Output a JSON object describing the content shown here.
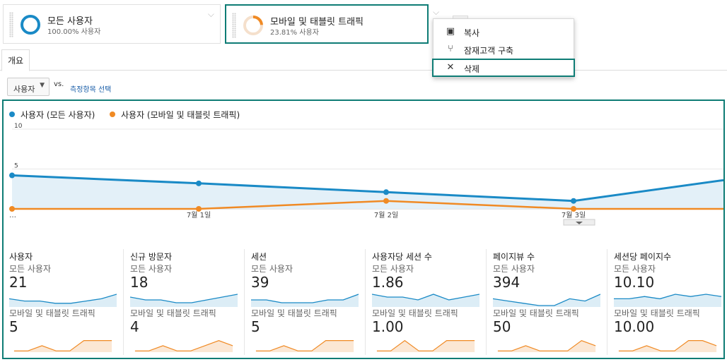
{
  "segments": [
    {
      "title": "모든 사용자",
      "subtitle": "100.00% 사용자",
      "percent": 100.0,
      "color": "#1a8ac6"
    },
    {
      "title": "모바일 및 태블릿 트래픽",
      "subtitle": "23.81% 사용자",
      "percent": 23.81,
      "color": "#f08a24"
    }
  ],
  "menu": {
    "items": [
      {
        "label": "복사",
        "icon": "copy-icon"
      },
      {
        "label": "잠재고객 구축",
        "icon": "fork-icon"
      },
      {
        "label": "삭제",
        "icon": "close-icon"
      }
    ]
  },
  "tabs": [
    {
      "label": "개요"
    }
  ],
  "metric_selector": {
    "value": "사용자",
    "vs": "vs.",
    "pick": "측정항목 선택"
  },
  "legend": {
    "series1": "사용자 (모든 사용자)",
    "series2": "사용자 (모바일 및 태블릿 트래픽)"
  },
  "chart_data": {
    "type": "line",
    "x": [
      "…",
      "7월 1일",
      "7월 2일",
      "7월 3일",
      ""
    ],
    "series": [
      {
        "name": "사용자 (모든 사용자)",
        "values": [
          4.2,
          3.2,
          2.1,
          1.0,
          3.6
        ],
        "color": "#1a8ac6"
      },
      {
        "name": "사용자 (모바일 및 태블릿 트래픽)",
        "values": [
          0,
          0,
          1,
          0,
          0
        ],
        "color": "#f08a24"
      }
    ],
    "yticks": [
      "10",
      "5"
    ],
    "ylim": [
      0,
      10
    ],
    "grid": true
  },
  "metrics": [
    {
      "name": "사용자",
      "seg1": "모든 사용자",
      "v1": "21",
      "seg2": "모바일 및 태블릿 트래픽",
      "v2": "5",
      "spark1": [
        3,
        2,
        2,
        1,
        1,
        2,
        3,
        5
      ],
      "spark2": [
        0,
        0,
        1,
        0,
        0,
        2,
        2,
        2
      ]
    },
    {
      "name": "신규 방문자",
      "seg1": "모든 사용자",
      "v1": "18",
      "seg2": "모바일 및 태블릿 트래픽",
      "v2": "4",
      "spark1": [
        3,
        2,
        2,
        1,
        1,
        2,
        3,
        4
      ],
      "spark2": [
        0,
        0,
        1,
        0,
        0,
        1,
        2,
        1
      ]
    },
    {
      "name": "세션",
      "seg1": "모든 사용자",
      "v1": "39",
      "seg2": "모바일 및 태블릿 트래픽",
      "v2": "5",
      "spark1": [
        2,
        2,
        1,
        1,
        1,
        2,
        2,
        4
      ],
      "spark2": [
        0,
        0,
        1,
        0,
        0,
        2,
        2,
        2
      ]
    },
    {
      "name": "사용자당 세션 수",
      "seg1": "모든 사용자",
      "v1": "1.86",
      "seg2": "모바일 및 태블릿 트래픽",
      "v2": "1.00",
      "spark1": [
        4,
        3,
        3,
        2,
        4,
        2,
        3,
        4
      ],
      "spark2": [
        0,
        0,
        2,
        0,
        0,
        2,
        2,
        2
      ]
    },
    {
      "name": "페이지뷰 수",
      "seg1": "모든 사용자",
      "v1": "394",
      "seg2": "모바일 및 태블릿 트래픽",
      "v2": "50",
      "spark1": [
        3,
        2,
        1,
        0,
        0,
        3,
        2,
        5
      ],
      "spark2": [
        0,
        0,
        1,
        0,
        0,
        0,
        2,
        1
      ]
    },
    {
      "name": "세션당 페이지수",
      "seg1": "모든 사용자",
      "v1": "10.10",
      "seg2": "모바일 및 태블릿 트래픽",
      "v2": "10.00",
      "spark1": [
        3,
        3,
        4,
        3,
        5,
        4,
        5,
        4
      ],
      "spark2": [
        0,
        0,
        1,
        0,
        0,
        2,
        2,
        1
      ]
    }
  ]
}
